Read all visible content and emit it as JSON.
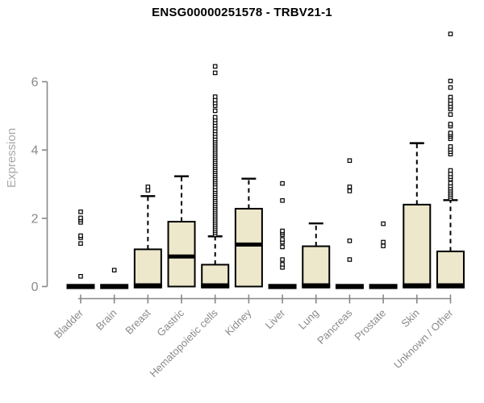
{
  "chart_data": {
    "type": "boxplot",
    "title": "ENSG00000251578 - TRBV21-1",
    "ylabel": "Expression",
    "xlabel": "",
    "ylim": [
      0,
      7.5
    ],
    "yticks": [
      0,
      2,
      4,
      6
    ],
    "grid": false,
    "legend": null,
    "box_fill_color": "#EDE7CB",
    "box_stroke_color": "#000000",
    "axis_color": "#888888",
    "tick_label_color": "#8A8A8A",
    "axis_title_color": "#A9A9A9",
    "categories": [
      "Bladder",
      "Brain",
      "Breast",
      "Gastric",
      "Hematopoietic cells",
      "Kidney",
      "Liver",
      "Lung",
      "Pancreas",
      "Prostate",
      "Skin",
      "Unknown / Other"
    ],
    "series": [
      {
        "name": "Bladder",
        "q1": 0,
        "median": 0,
        "q3": 0,
        "whisker_low": 0,
        "whisker_high": 0,
        "outliers": [
          0.3,
          1.26,
          1.43,
          1.49,
          1.88,
          1.95,
          2.01,
          2.19
        ]
      },
      {
        "name": "Brain",
        "q1": 0,
        "median": 0,
        "q3": 0,
        "whisker_low": 0,
        "whisker_high": 0,
        "outliers": [
          0.48
        ]
      },
      {
        "name": "Breast",
        "q1": 0,
        "median": 0,
        "q3": 1.09,
        "whisker_low": 0,
        "whisker_high": 2.65,
        "outliers": [
          2.82,
          2.92
        ]
      },
      {
        "name": "Gastric",
        "q1": 0,
        "median": 0.88,
        "q3": 1.9,
        "whisker_low": 0,
        "whisker_high": 3.23,
        "outliers": []
      },
      {
        "name": "Hematopoietic cells",
        "q1": 0,
        "median": 0,
        "q3": 0.64,
        "whisker_low": 0,
        "whisker_high": 1.47,
        "outliers": [
          1.52,
          1.58,
          1.64,
          1.7,
          1.76,
          1.82,
          1.88,
          1.94,
          2.0,
          2.06,
          2.12,
          2.18,
          2.24,
          2.3,
          2.36,
          2.42,
          2.48,
          2.54,
          2.6,
          2.66,
          2.72,
          2.78,
          2.84,
          2.92,
          3.0,
          3.06,
          3.12,
          3.18,
          3.24,
          3.3,
          3.36,
          3.42,
          3.48,
          3.54,
          3.6,
          3.66,
          3.72,
          3.78,
          3.84,
          3.9,
          3.96,
          4.02,
          4.08,
          4.14,
          4.2,
          4.26,
          4.32,
          4.4,
          4.48,
          4.56,
          4.64,
          4.72,
          4.8,
          4.88,
          4.96,
          5.15,
          5.3,
          5.38,
          5.46,
          5.56,
          6.26,
          6.45
        ]
      },
      {
        "name": "Kidney",
        "q1": 0,
        "median": 1.23,
        "q3": 2.28,
        "whisker_low": 0,
        "whisker_high": 3.16,
        "outliers": []
      },
      {
        "name": "Liver",
        "q1": 0,
        "median": 0,
        "q3": 0,
        "whisker_low": 0,
        "whisker_high": 0,
        "outliers": [
          0.56,
          0.65,
          0.79,
          1.16,
          1.3,
          1.38,
          1.52,
          1.58,
          1.63,
          2.52,
          3.02
        ]
      },
      {
        "name": "Lung",
        "q1": 0,
        "median": 0,
        "q3": 1.18,
        "whisker_low": 0,
        "whisker_high": 1.85,
        "outliers": []
      },
      {
        "name": "Pancreas",
        "q1": 0,
        "median": 0,
        "q3": 0,
        "whisker_low": 0,
        "whisker_high": 0,
        "outliers": [
          0.79,
          1.34,
          2.8,
          2.92,
          3.69
        ]
      },
      {
        "name": "Prostate",
        "q1": 0,
        "median": 0,
        "q3": 0,
        "whisker_low": 0,
        "whisker_high": 0,
        "outliers": [
          1.19,
          1.3,
          1.84
        ]
      },
      {
        "name": "Skin",
        "q1": 0,
        "median": 0,
        "q3": 2.4,
        "whisker_low": 0,
        "whisker_high": 4.2,
        "outliers": []
      },
      {
        "name": "Unknown / Other",
        "q1": 0,
        "median": 0,
        "q3": 1.03,
        "whisker_low": 0,
        "whisker_high": 2.53,
        "outliers": [
          2.58,
          2.64,
          2.7,
          2.76,
          2.82,
          2.88,
          2.95,
          3.03,
          3.15,
          3.22,
          3.3,
          3.4,
          3.88,
          3.95,
          4.02,
          4.1,
          4.33,
          4.4,
          4.45,
          4.5,
          4.7,
          4.76,
          5.04,
          5.2,
          5.28,
          5.36,
          5.45,
          5.55,
          5.83,
          6.02,
          7.4
        ]
      }
    ]
  }
}
